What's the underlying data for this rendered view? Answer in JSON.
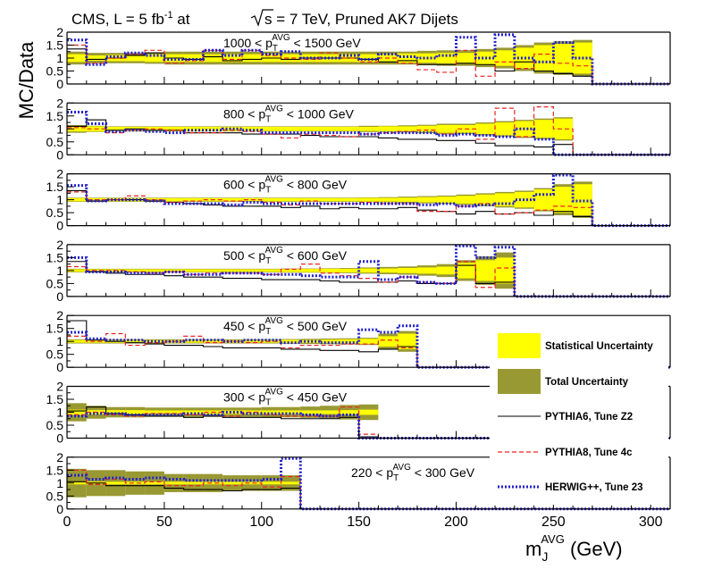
{
  "chart_data": {
    "type": "line",
    "title": "CMS, L = 5 fb",
    "title_sup": "-1",
    "title_rest": " at ",
    "title_sqrt": "s",
    "title_tail": " = 7 TeV, Pruned AK7 Dijets",
    "ylabel": "MC/Data",
    "xlabel_main": "m",
    "xlabel_sub": "J",
    "xlabel_sup": "AVG",
    "xlabel_unit": " (GeV)",
    "xlim": [
      0,
      310
    ],
    "ylim": [
      0,
      2
    ],
    "x_ticks": [
      "0",
      "50",
      "100",
      "150",
      "200",
      "250",
      "300"
    ],
    "y_ticks": [
      "0",
      "0.5",
      "1",
      "1.5",
      "2"
    ],
    "legend": {
      "stat": "Statistical Uncertainty",
      "total": "Total Uncertainty",
      "py6": "PYTHIA6, Tune Z2",
      "py8": "PYTHIA8, Tune 4c",
      "hw": "HERWIG++, Tune 23"
    },
    "colors": {
      "stat": "#ffff00",
      "total": "#999933",
      "py6": "#000000",
      "py8": "#ee2222",
      "hw": "#2222cc"
    },
    "bin_width": 10,
    "panels": [
      {
        "pre": "1000 < p",
        "sub": "T",
        "sup": "AVG",
        "post": " < 1500 GeV",
        "label_pos": "top",
        "range": [
          0,
          27
        ],
        "stat": [
          0.15,
          0.1,
          0.12,
          0.12,
          0.15,
          0.15,
          0.15,
          0.15,
          0.15,
          0.15,
          0.15,
          0.15,
          0.15,
          0.15,
          0.15,
          0.15,
          0.15,
          0.18,
          0.18,
          0.2,
          0.2,
          0.25,
          0.3,
          0.4,
          0.5,
          0.55,
          0.6
        ],
        "total": [
          0.25,
          0.2,
          0.2,
          0.2,
          0.22,
          0.25,
          0.25,
          0.25,
          0.25,
          0.25,
          0.25,
          0.25,
          0.25,
          0.25,
          0.25,
          0.25,
          0.25,
          0.25,
          0.28,
          0.3,
          0.3,
          0.35,
          0.4,
          0.5,
          0.6,
          0.65,
          0.7
        ],
        "py6": [
          1.35,
          0.95,
          1.0,
          1.1,
          1.2,
          1.0,
          0.95,
          1.05,
          0.9,
          0.95,
          1.0,
          0.95,
          1.0,
          1.0,
          1.0,
          0.95,
          0.85,
          0.9,
          0.75,
          0.75,
          0.8,
          0.75,
          0.5,
          0.85,
          0.5,
          0.4,
          0.3
        ],
        "py8": [
          1.5,
          0.8,
          1.0,
          1.15,
          1.3,
          0.8,
          0.9,
          1.3,
          0.95,
          1.3,
          1.1,
          1.0,
          0.95,
          1.2,
          1.0,
          0.85,
          1.0,
          0.8,
          0.55,
          0.45,
          1.3,
          0.3,
          0.85,
          0.6,
          1.15,
          0.8,
          0.7
        ],
        "hw": [
          1.7,
          0.75,
          1.05,
          1.2,
          1.1,
          0.95,
          0.95,
          1.3,
          1.1,
          1.3,
          1.15,
          1.25,
          1.0,
          1.0,
          1.1,
          0.95,
          1.15,
          1.05,
          1.0,
          1.1,
          1.8,
          1.0,
          1.9,
          1.0,
          0.85,
          1.6,
          1.0
        ]
      },
      {
        "pre": "800 < p",
        "sub": "T",
        "sup": "AVG",
        "post": " < 1000 GeV",
        "label_pos": "top",
        "range": [
          0,
          26
        ],
        "stat": [
          0.1,
          0.1,
          0.08,
          0.08,
          0.08,
          0.08,
          0.08,
          0.08,
          0.08,
          0.08,
          0.08,
          0.08,
          0.08,
          0.08,
          0.08,
          0.08,
          0.1,
          0.1,
          0.12,
          0.15,
          0.15,
          0.2,
          0.25,
          0.3,
          0.35,
          0.4
        ],
        "total": [
          0.15,
          0.12,
          0.1,
          0.1,
          0.1,
          0.1,
          0.1,
          0.1,
          0.1,
          0.1,
          0.1,
          0.1,
          0.1,
          0.1,
          0.1,
          0.12,
          0.12,
          0.14,
          0.16,
          0.2,
          0.2,
          0.25,
          0.3,
          0.35,
          0.4,
          0.45
        ],
        "py6": [
          1.1,
          1.35,
          0.95,
          1.0,
          0.95,
          0.95,
          0.85,
          0.85,
          0.85,
          0.8,
          0.8,
          0.8,
          0.75,
          0.7,
          0.7,
          0.7,
          0.65,
          0.6,
          0.6,
          0.55,
          0.55,
          0.45,
          0.35,
          0.35,
          0.3,
          0.4
        ],
        "py8": [
          1.05,
          1.0,
          0.85,
          0.95,
          1.0,
          0.95,
          0.85,
          0.85,
          0.95,
          0.9,
          0.8,
          0.65,
          0.8,
          0.75,
          0.7,
          0.8,
          0.85,
          0.9,
          0.95,
          0.8,
          1.0,
          0.6,
          1.8,
          0.7,
          1.85,
          1.0
        ],
        "hw": [
          1.65,
          1.2,
          0.9,
          0.95,
          0.9,
          0.85,
          0.95,
          0.95,
          1.0,
          0.95,
          0.85,
          0.85,
          0.85,
          0.85,
          0.85,
          0.8,
          0.85,
          0.85,
          0.85,
          0.75,
          0.8,
          0.75,
          0.7,
          1.0,
          0.6,
          0.0
        ]
      },
      {
        "pre": "600 < p",
        "sub": "T",
        "sup": "AVG",
        "post": " < 800 GeV",
        "label_pos": "top",
        "range": [
          0,
          27
        ],
        "stat": [
          0.06,
          0.06,
          0.06,
          0.06,
          0.06,
          0.06,
          0.06,
          0.06,
          0.06,
          0.06,
          0.06,
          0.06,
          0.06,
          0.06,
          0.06,
          0.07,
          0.07,
          0.08,
          0.1,
          0.12,
          0.15,
          0.2,
          0.25,
          0.3,
          0.4,
          0.5,
          0.6
        ],
        "total": [
          0.08,
          0.08,
          0.08,
          0.08,
          0.08,
          0.08,
          0.08,
          0.08,
          0.08,
          0.08,
          0.08,
          0.08,
          0.08,
          0.08,
          0.08,
          0.09,
          0.1,
          0.12,
          0.14,
          0.16,
          0.2,
          0.25,
          0.3,
          0.35,
          0.45,
          0.6,
          0.7
        ],
        "py6": [
          1.35,
          0.95,
          1.0,
          1.0,
          0.95,
          0.9,
          0.85,
          0.8,
          0.75,
          0.75,
          0.75,
          0.7,
          0.75,
          0.65,
          0.7,
          0.65,
          0.65,
          0.7,
          0.6,
          0.55,
          0.45,
          0.55,
          0.45,
          0.5,
          0.4,
          0.55,
          0.35
        ],
        "py8": [
          1.3,
          1.0,
          1.0,
          1.15,
          1.0,
          0.9,
          0.95,
          1.0,
          0.95,
          1.0,
          0.9,
          0.8,
          0.95,
          0.85,
          0.85,
          0.9,
          0.85,
          0.85,
          0.55,
          0.55,
          0.75,
          0.85,
          0.45,
          0.5,
          0.6,
          0.75,
          0.7
        ],
        "hw": [
          1.55,
          0.95,
          1.0,
          1.0,
          0.95,
          0.85,
          0.85,
          0.85,
          0.8,
          0.9,
          0.85,
          0.85,
          0.85,
          0.85,
          0.85,
          0.85,
          0.85,
          0.85,
          0.8,
          0.85,
          0.75,
          0.8,
          0.85,
          1.0,
          1.2,
          1.95,
          0.95
        ]
      },
      {
        "pre": "500 < p",
        "sub": "T",
        "sup": "AVG",
        "post": " < 600 GeV",
        "label_pos": "top",
        "range": [
          0,
          23
        ],
        "stat": [
          0.05,
          0.05,
          0.05,
          0.05,
          0.05,
          0.05,
          0.05,
          0.05,
          0.05,
          0.05,
          0.05,
          0.06,
          0.06,
          0.07,
          0.07,
          0.08,
          0.08,
          0.1,
          0.12,
          0.15,
          0.3,
          0.4,
          0.5
        ],
        "total": [
          0.07,
          0.07,
          0.07,
          0.07,
          0.07,
          0.07,
          0.07,
          0.07,
          0.07,
          0.07,
          0.07,
          0.08,
          0.08,
          0.09,
          0.1,
          0.12,
          0.14,
          0.16,
          0.2,
          0.25,
          0.4,
          0.55,
          0.7
        ],
        "py6": [
          1.35,
          0.95,
          0.9,
          0.85,
          0.85,
          0.8,
          0.75,
          0.75,
          0.7,
          0.7,
          0.65,
          0.65,
          0.65,
          0.6,
          0.55,
          0.55,
          0.55,
          0.6,
          0.5,
          0.5,
          1.2,
          0.5,
          0.55
        ],
        "py8": [
          1.15,
          1.0,
          1.0,
          0.95,
          0.9,
          0.95,
          0.85,
          0.9,
          0.9,
          0.9,
          0.85,
          1.05,
          1.25,
          0.9,
          0.8,
          0.7,
          0.55,
          0.75,
          0.55,
          0.5,
          1.35,
          0.35,
          1.1
        ],
        "hw": [
          1.5,
          0.95,
          0.95,
          0.9,
          0.9,
          0.95,
          0.85,
          0.85,
          0.9,
          0.9,
          0.85,
          0.85,
          0.8,
          0.75,
          0.75,
          1.35,
          0.65,
          0.75,
          0.55,
          0.5,
          1.95,
          1.5,
          1.9
        ]
      },
      {
        "pre": "450 < p",
        "sub": "T",
        "sup": "AVG",
        "post": " < 500 GeV",
        "label_pos": "top",
        "range": [
          0,
          18
        ],
        "stat": [
          0.05,
          0.05,
          0.05,
          0.05,
          0.05,
          0.05,
          0.05,
          0.05,
          0.05,
          0.05,
          0.05,
          0.06,
          0.06,
          0.07,
          0.08,
          0.1,
          0.2,
          0.3
        ],
        "total": [
          0.08,
          0.08,
          0.08,
          0.08,
          0.08,
          0.08,
          0.08,
          0.08,
          0.08,
          0.08,
          0.08,
          0.09,
          0.1,
          0.11,
          0.12,
          0.14,
          0.3,
          0.4
        ],
        "py6": [
          1.8,
          1.05,
          1.0,
          0.95,
          0.9,
          0.85,
          0.85,
          0.8,
          0.75,
          0.75,
          0.75,
          0.7,
          0.7,
          0.65,
          0.65,
          0.6,
          0.7,
          0.8
        ],
        "py8": [
          1.2,
          1.0,
          1.3,
          0.85,
          0.95,
          1.0,
          1.2,
          0.95,
          1.0,
          0.95,
          1.0,
          0.75,
          0.85,
          0.85,
          0.9,
          0.9,
          1.05,
          0.75
        ],
        "hw": [
          1.35,
          1.1,
          1.05,
          1.05,
          1.0,
          1.0,
          1.05,
          1.05,
          1.0,
          1.05,
          1.05,
          0.95,
          1.0,
          0.95,
          0.95,
          1.45,
          1.35,
          1.6
        ]
      },
      {
        "pre": "300 < p",
        "sub": "T",
        "sup": "AVG",
        "post": " < 450 GeV",
        "label_pos": "top",
        "range": [
          0,
          16
        ],
        "stat": [
          0.1,
          0.08,
          0.08,
          0.08,
          0.07,
          0.07,
          0.07,
          0.07,
          0.07,
          0.07,
          0.07,
          0.07,
          0.07,
          0.07,
          0.08,
          0.1
        ],
        "total": [
          0.35,
          0.25,
          0.2,
          0.2,
          0.18,
          0.18,
          0.18,
          0.18,
          0.18,
          0.18,
          0.2,
          0.2,
          0.22,
          0.25,
          0.28,
          0.3
        ],
        "py6": [
          1.05,
          1.2,
          0.95,
          0.9,
          0.85,
          0.85,
          0.8,
          0.85,
          0.8,
          0.8,
          0.8,
          0.75,
          0.75,
          0.75,
          0.8,
          0.05
        ],
        "py8": [
          0.9,
          1.0,
          0.9,
          0.85,
          0.95,
          0.95,
          0.9,
          1.0,
          0.85,
          1.0,
          0.9,
          0.85,
          0.85,
          0.85,
          1.2,
          0.15
        ],
        "hw": [
          0.85,
          0.95,
          0.95,
          0.9,
          0.9,
          0.9,
          0.95,
          0.9,
          1.0,
          0.95,
          0.95,
          0.95,
          0.9,
          0.85,
          0.9,
          0.0
        ]
      },
      {
        "pre": "220 < p",
        "sub": "T",
        "sup": "AVG",
        "post": " < 300 GeV",
        "label_pos": "right",
        "range": [
          0,
          12
        ],
        "stat": [
          0.05,
          0.05,
          0.05,
          0.05,
          0.05,
          0.05,
          0.05,
          0.05,
          0.05,
          0.05,
          0.05,
          0.05
        ],
        "total": [
          0.55,
          0.5,
          0.5,
          0.45,
          0.45,
          0.35,
          0.35,
          0.35,
          0.3,
          0.3,
          0.3,
          0.3
        ],
        "py6": [
          1.05,
          1.0,
          0.9,
          0.9,
          0.9,
          0.8,
          0.75,
          0.75,
          0.7,
          0.75,
          0.75,
          0.8
        ],
        "py8": [
          1.5,
          0.95,
          1.15,
          1.0,
          1.05,
          0.9,
          0.9,
          1.0,
          0.9,
          1.0,
          0.85,
          1.25
        ],
        "hw": [
          1.3,
          1.15,
          1.2,
          1.15,
          1.2,
          1.15,
          1.1,
          1.1,
          1.1,
          1.1,
          1.15,
          1.95
        ]
      }
    ]
  }
}
